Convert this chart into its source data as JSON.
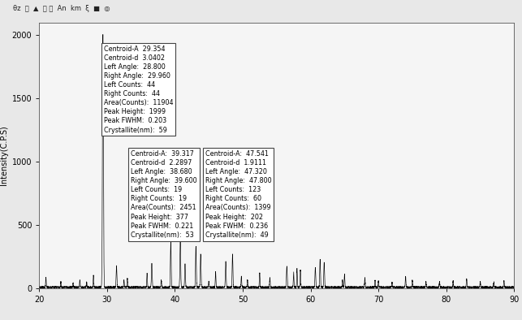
{
  "ylabel": "Intensity(C.P.S)",
  "xlim": [
    20,
    90
  ],
  "ylim": [
    0,
    2100
  ],
  "yticks": [
    0,
    500,
    1000,
    1500,
    2000
  ],
  "xticks": [
    20,
    30,
    40,
    50,
    60,
    70,
    80,
    90
  ],
  "bg_color": "#e8e8e8",
  "plot_bg": "#f5f5f5",
  "peak1_box": "Centroid-A  29.354\nCentroid-d  3.0402\nLeft Angle:  28.800\nRight Angle:  29.960\nLeft Counts:  44\nRight Counts:  44\nArea(Counts):  11904\nPeak Height:  1999\nPeak FWHM:  0.203\nCrystallite(nm):  59",
  "peak2_box": "Centroid-A:  39.317\nCentroid-d  2.2897\nLeft Angle:  38.680\nRight Angle:  39.600\nLeft Counts:  19\nRight Counts:  19\nArea(Counts):  2451\nPeak Height:  377\nPeak FWHM:  0.221\nCrystallite(nm):  53",
  "peak3_box": "Centroid-A:  47.541\nCentroid-d  1.9111\nLeft Angle:  47.320\nRight Angle:  47.800\nLeft Counts:  123\nRight Counts:  60\nArea(Counts):  1399\nPeak Height:  202\nPeak FWHM:  0.236\nCrystallite(nm):  49",
  "peaks": [
    [
      21.0,
      75
    ],
    [
      23.2,
      45
    ],
    [
      25.0,
      35
    ],
    [
      26.0,
      55
    ],
    [
      27.0,
      40
    ],
    [
      28.0,
      95
    ],
    [
      29.4,
      1999
    ],
    [
      31.4,
      170
    ],
    [
      32.5,
      55
    ],
    [
      33.0,
      70
    ],
    [
      35.9,
      110
    ],
    [
      36.6,
      185
    ],
    [
      38.0,
      55
    ],
    [
      39.4,
      377
    ],
    [
      40.8,
      380
    ],
    [
      41.5,
      185
    ],
    [
      43.1,
      320
    ],
    [
      43.8,
      260
    ],
    [
      45.0,
      45
    ],
    [
      46.0,
      120
    ],
    [
      47.5,
      202
    ],
    [
      48.5,
      260
    ],
    [
      49.8,
      85
    ],
    [
      50.7,
      55
    ],
    [
      52.5,
      110
    ],
    [
      54.0,
      75
    ],
    [
      56.5,
      165
    ],
    [
      57.5,
      120
    ],
    [
      58.0,
      150
    ],
    [
      58.5,
      135
    ],
    [
      60.7,
      155
    ],
    [
      61.4,
      220
    ],
    [
      62.0,
      195
    ],
    [
      64.7,
      55
    ],
    [
      65.0,
      100
    ],
    [
      68.0,
      75
    ],
    [
      69.5,
      55
    ],
    [
      70.0,
      50
    ],
    [
      72.0,
      38
    ],
    [
      74.0,
      85
    ],
    [
      75.0,
      55
    ],
    [
      77.0,
      45
    ],
    [
      79.0,
      42
    ],
    [
      81.0,
      50
    ],
    [
      83.0,
      65
    ],
    [
      85.0,
      42
    ],
    [
      87.0,
      38
    ],
    [
      88.5,
      50
    ]
  ]
}
